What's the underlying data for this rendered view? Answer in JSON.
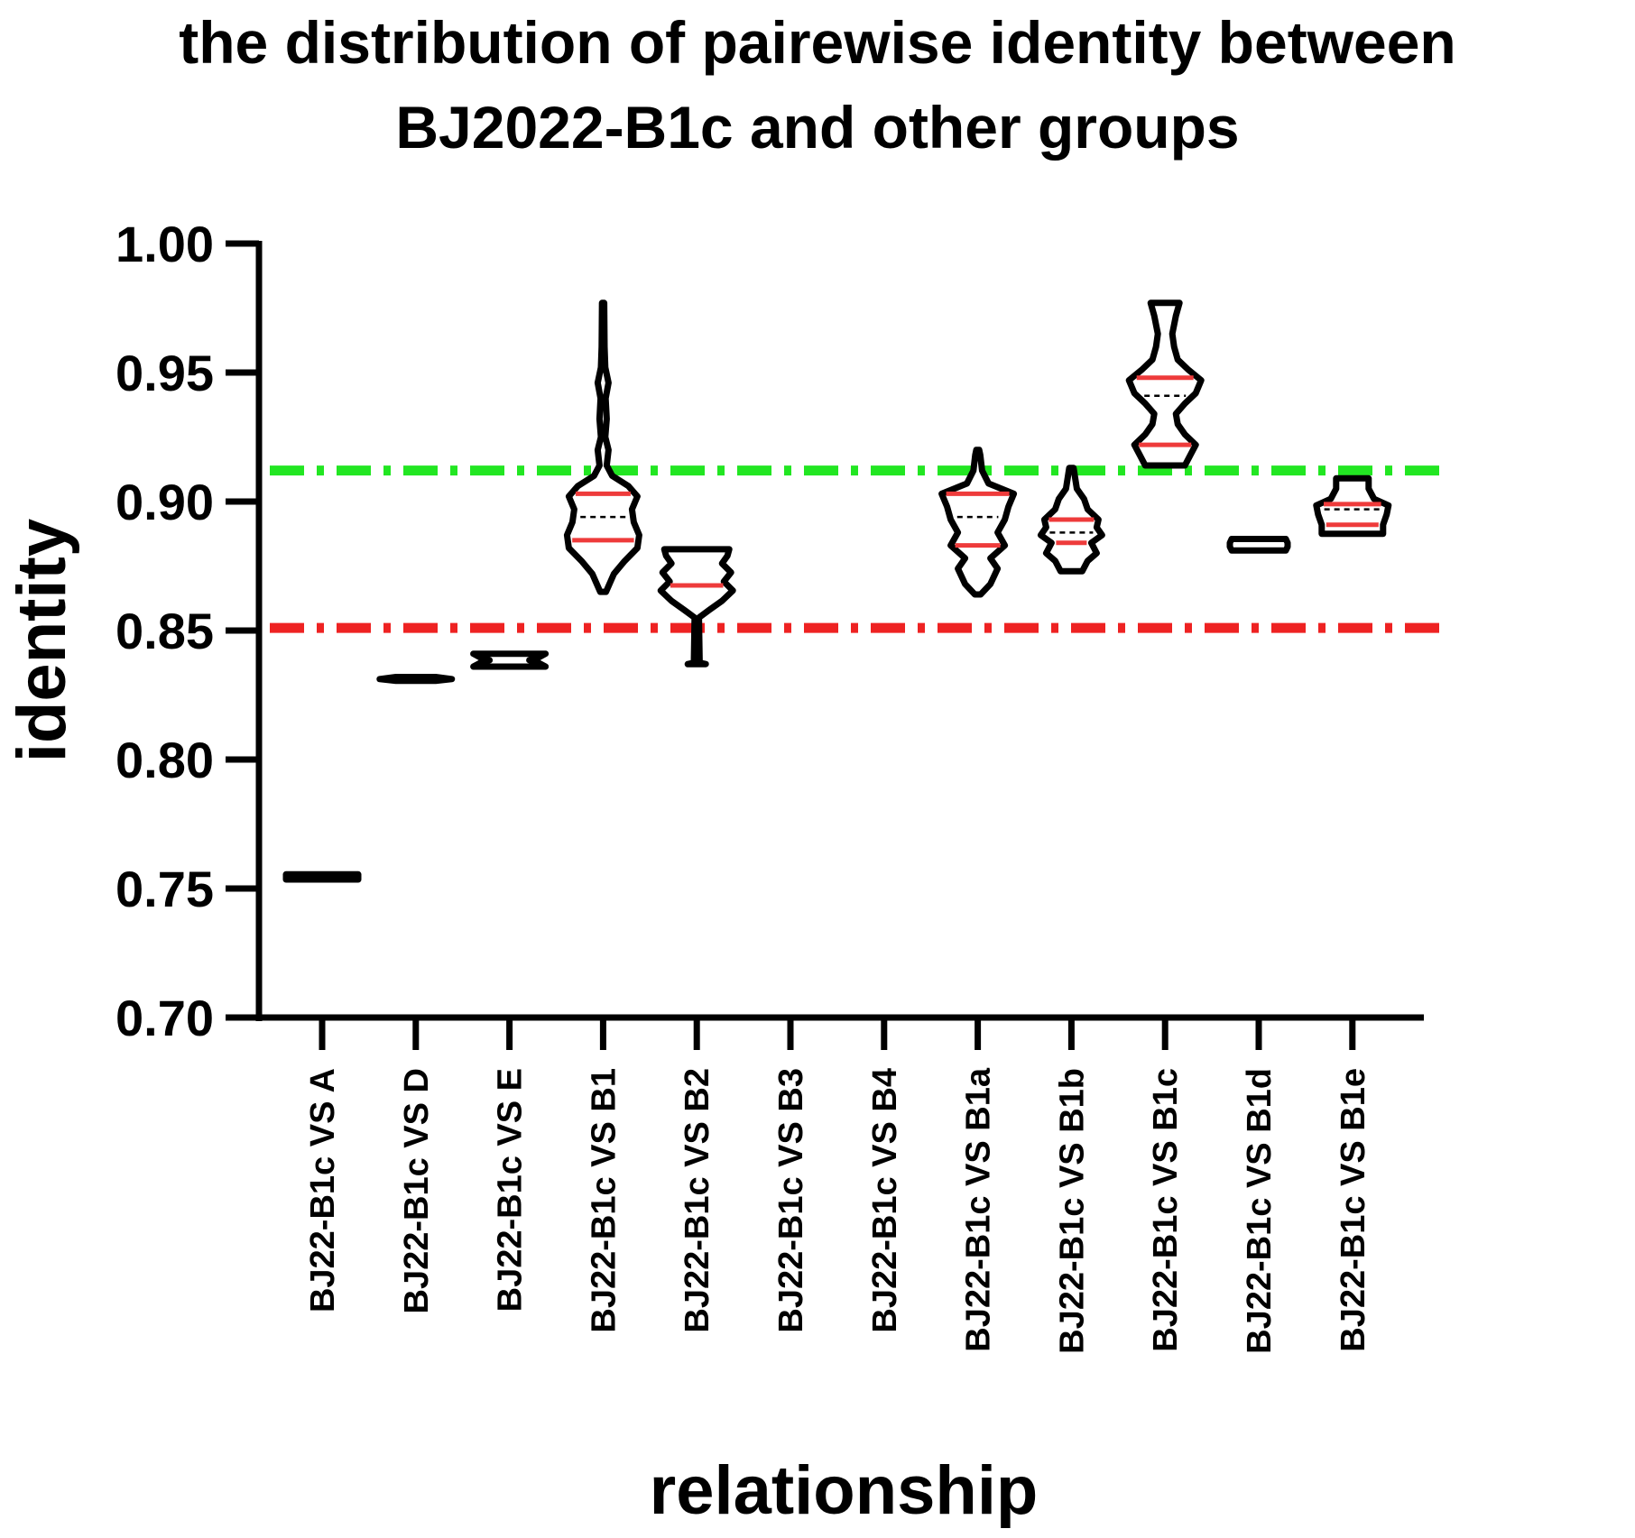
{
  "chart_data": {
    "type": "violin",
    "title_lines": [
      "the distribution of pairewise identity between",
      "BJ2022-B1c and other groups"
    ],
    "xlabel": "relationship",
    "ylabel": "identity",
    "ylim": [
      0.7,
      1.0
    ],
    "yticks": [
      "0.70",
      "0.75",
      "0.80",
      "0.85",
      "0.90",
      "0.95",
      "1.00"
    ],
    "ytick_values": [
      0.7,
      0.75,
      0.8,
      0.85,
      0.9,
      0.95,
      1.0
    ],
    "categories": [
      "BJ22-B1c VS A",
      "BJ22-B1c VS D",
      "BJ22-B1c VS E",
      "BJ22-B1c VS B1",
      "BJ22-B1c VS B2",
      "BJ22-B1c VS B3",
      "BJ22-B1c VS B4",
      "BJ22-B1c VS B1a",
      "BJ22-B1c VS B1b",
      "BJ22-B1c VS B1c",
      "BJ22-B1c VS B1d",
      "BJ22-B1c VS B1e"
    ],
    "reference_lines": [
      {
        "value": 0.912,
        "color": "#22e622",
        "style": "dash-dot"
      },
      {
        "value": 0.851,
        "color": "#ee2222",
        "style": "dash-dot"
      }
    ],
    "violins": [
      {
        "profile": [
          [
            0.7535,
            1.0
          ],
          [
            0.7545,
            1.0
          ],
          [
            0.7555,
            1.0
          ]
        ],
        "median": null,
        "quartiles": []
      },
      {
        "profile": [
          [
            0.8305,
            0.55
          ],
          [
            0.8312,
            1.0
          ],
          [
            0.832,
            0.55
          ]
        ],
        "median": null,
        "quartiles": []
      },
      {
        "profile": [
          [
            0.836,
            1.0
          ],
          [
            0.8375,
            0.8
          ],
          [
            0.8385,
            0.55
          ],
          [
            0.8395,
            0.8
          ],
          [
            0.841,
            1.0
          ]
        ],
        "median": null,
        "quartiles": []
      },
      {
        "profile": [
          [
            0.865,
            0.08
          ],
          [
            0.872,
            0.3
          ],
          [
            0.877,
            0.6
          ],
          [
            0.882,
            0.95
          ],
          [
            0.887,
            1.0
          ],
          [
            0.892,
            0.85
          ],
          [
            0.897,
            0.8
          ],
          [
            0.902,
            0.95
          ],
          [
            0.906,
            0.7
          ],
          [
            0.91,
            0.25
          ],
          [
            0.914,
            0.1
          ],
          [
            0.92,
            0.15
          ],
          [
            0.925,
            0.06
          ],
          [
            0.932,
            0.1
          ],
          [
            0.94,
            0.07
          ],
          [
            0.946,
            0.15
          ],
          [
            0.952,
            0.06
          ],
          [
            0.96,
            0.04
          ],
          [
            0.977,
            0.03
          ]
        ],
        "median": 0.894,
        "quartiles": [
          0.885,
          0.903
        ]
      },
      {
        "profile": [
          [
            0.837,
            0.25
          ],
          [
            0.8375,
            0.08
          ],
          [
            0.855,
            0.06
          ],
          [
            0.858,
            0.35
          ],
          [
            0.8615,
            0.7
          ],
          [
            0.8655,
            1.0
          ],
          [
            0.869,
            0.75
          ],
          [
            0.8725,
            0.95
          ],
          [
            0.876,
            0.7
          ],
          [
            0.879,
            0.85
          ],
          [
            0.8815,
            0.9
          ]
        ],
        "median": null,
        "quartiles": [
          0.8675
        ]
      },
      null,
      null,
      {
        "profile": [
          [
            0.864,
            0.08
          ],
          [
            0.868,
            0.35
          ],
          [
            0.874,
            0.55
          ],
          [
            0.878,
            0.35
          ],
          [
            0.883,
            0.75
          ],
          [
            0.888,
            0.55
          ],
          [
            0.893,
            0.75
          ],
          [
            0.898,
            0.85
          ],
          [
            0.903,
            1.0
          ],
          [
            0.907,
            0.3
          ],
          [
            0.912,
            0.12
          ],
          [
            0.918,
            0.07
          ],
          [
            0.92,
            0.04
          ]
        ],
        "median": 0.894,
        "quartiles": [
          0.883,
          0.903
        ]
      },
      {
        "profile": [
          [
            0.873,
            0.3
          ],
          [
            0.877,
            0.45
          ],
          [
            0.88,
            0.7
          ],
          [
            0.884,
            0.55
          ],
          [
            0.887,
            0.85
          ],
          [
            0.89,
            0.7
          ],
          [
            0.893,
            0.75
          ],
          [
            0.897,
            0.45
          ],
          [
            0.901,
            0.35
          ],
          [
            0.905,
            0.15
          ],
          [
            0.913,
            0.06
          ]
        ],
        "median": 0.888,
        "quartiles": [
          0.884,
          0.893
        ]
      },
      {
        "profile": [
          [
            0.914,
            0.55
          ],
          [
            0.918,
            0.7
          ],
          [
            0.922,
            0.85
          ],
          [
            0.926,
            0.55
          ],
          [
            0.93,
            0.35
          ],
          [
            0.934,
            0.3
          ],
          [
            0.938,
            0.55
          ],
          [
            0.942,
            0.85
          ],
          [
            0.947,
            1.0
          ],
          [
            0.951,
            0.65
          ],
          [
            0.955,
            0.35
          ],
          [
            0.96,
            0.25
          ],
          [
            0.965,
            0.2
          ],
          [
            0.972,
            0.3
          ],
          [
            0.977,
            0.4
          ]
        ],
        "median": 0.941,
        "quartiles": [
          0.922,
          0.948
        ]
      },
      {
        "profile": [
          [
            0.881,
            0.75
          ],
          [
            0.8825,
            0.8
          ],
          [
            0.884,
            0.8
          ],
          [
            0.8855,
            0.75
          ]
        ],
        "median": null,
        "quartiles": []
      },
      {
        "profile": [
          [
            0.8875,
            0.85
          ],
          [
            0.891,
            0.85
          ],
          [
            0.895,
            0.95
          ],
          [
            0.8985,
            1.0
          ],
          [
            0.901,
            0.6
          ],
          [
            0.905,
            0.45
          ],
          [
            0.909,
            0.45
          ]
        ],
        "median": 0.897,
        "quartiles": [
          0.891,
          0.899
        ]
      }
    ]
  }
}
